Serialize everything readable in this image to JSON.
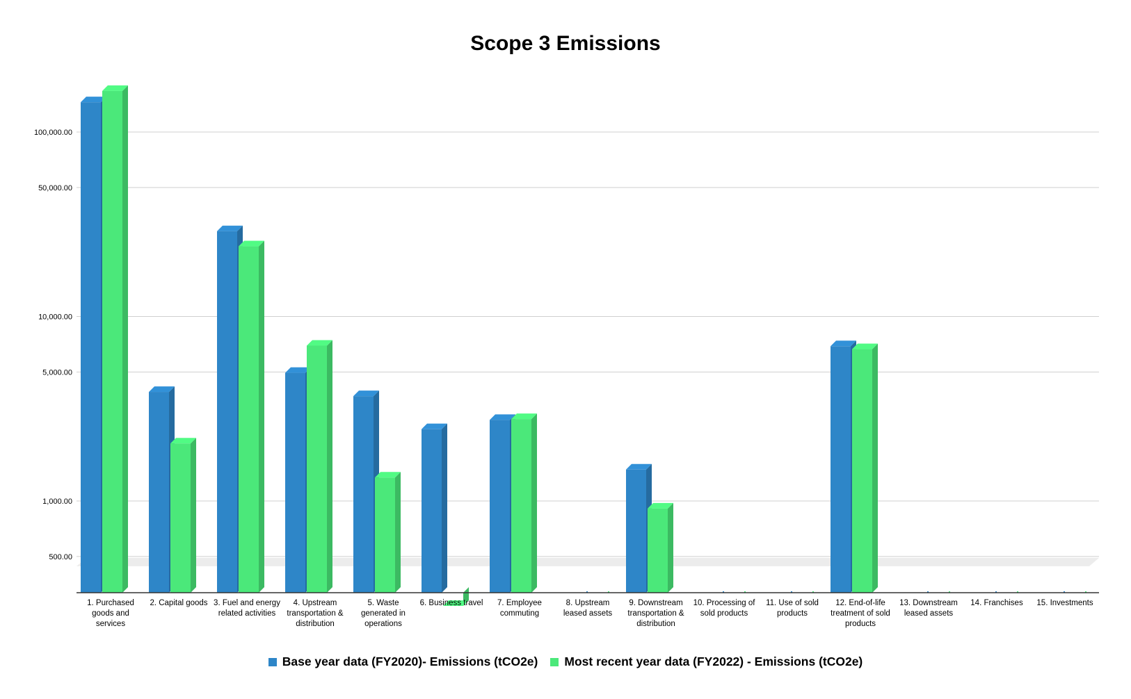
{
  "chart_data": {
    "type": "bar",
    "title": "Scope 3 Emissions",
    "xlabel": "",
    "ylabel": "",
    "y_scale": "log",
    "ylim": [
      250,
      190000
    ],
    "yticks": [
      500,
      1000,
      5000,
      10000,
      50000,
      100000
    ],
    "ytick_labels": [
      "500.00",
      "1,000.00",
      "5,000.00",
      "10,000.00",
      "50,000.00",
      "100,000.00"
    ],
    "grid": true,
    "legend_position": "bottom",
    "categories": [
      "1. Purchased goods and services",
      "2. Capital goods",
      "3. Fuel and energy related activities",
      "4. Upstream transportation & distribution",
      "5. Waste generated in operations",
      "6. Business travel",
      "7. Employee commuting",
      "8. Upstream leased assets",
      "9. Downstream transportation & distribution",
      "10. Processing of sold products",
      "11. Use of sold products",
      "12. End-of-life treatment of sold products",
      "13. Downstream leased assets",
      "14. Franchises",
      "15. Investments"
    ],
    "series": [
      {
        "name": "Base year data (FY2020)- Emissions (tCO2e)",
        "color": "#2E86C8",
        "values": [
          145000,
          3900,
          29000,
          4950,
          3700,
          2450,
          2750,
          0,
          1480,
          0,
          0,
          6900,
          0,
          0,
          0
        ]
      },
      {
        "name": "Most recent year data (FY2022) - Emissions (tCO2e)",
        "color": "#4BE87A",
        "values": [
          167000,
          2050,
          24000,
          6950,
          1340,
          270,
          2780,
          0,
          910,
          0,
          0,
          6650,
          0,
          0,
          0
        ]
      }
    ]
  }
}
